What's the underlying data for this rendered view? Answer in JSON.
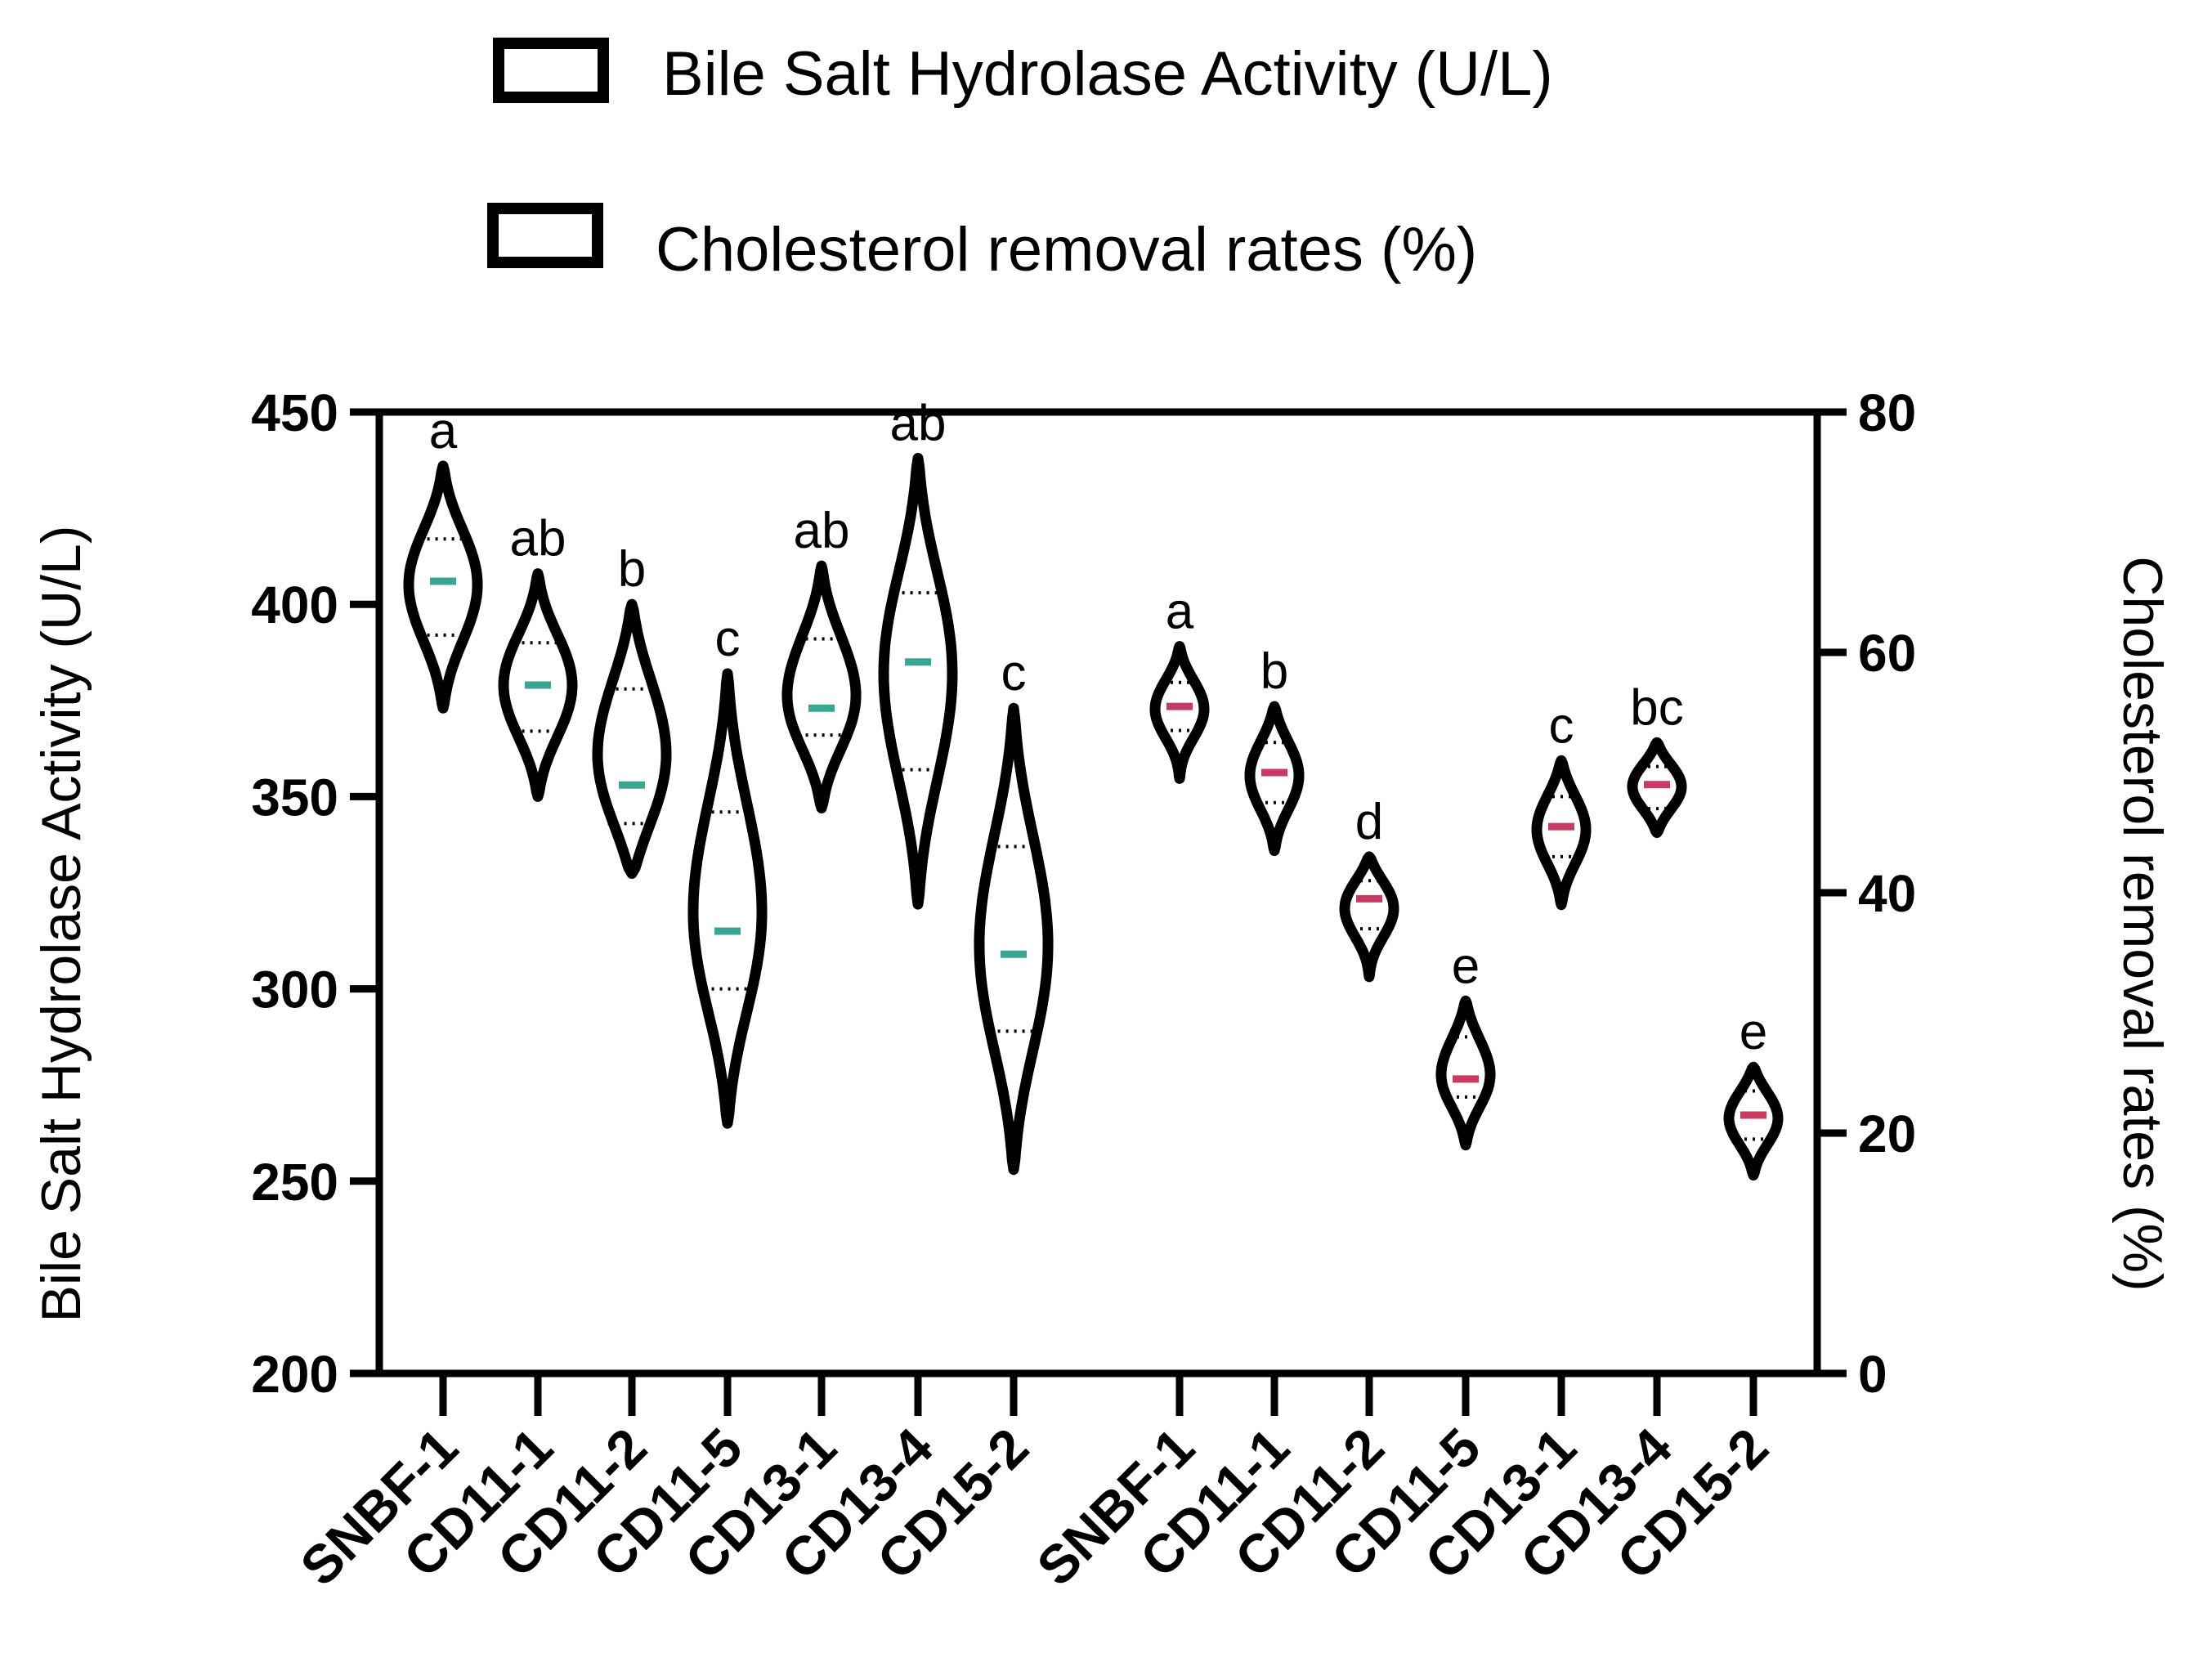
{
  "legend": {
    "items": [
      {
        "label": "Bile Salt Hydrolase Activity (U/L)"
      },
      {
        "label": "Cholesterol removal rates (%)"
      }
    ]
  },
  "chart_data": {
    "type": "violin",
    "left_axis": {
      "title": "Bile Salt Hydrolase Activity (U/L)",
      "range": [
        200,
        450
      ],
      "ticks": [
        "200",
        "250",
        "300",
        "350",
        "400",
        "450"
      ]
    },
    "right_axis": {
      "title": "Cholesterol removal rates (%)",
      "range": [
        0,
        80
      ],
      "ticks": [
        "0",
        "20",
        "40",
        "60",
        "80"
      ]
    },
    "series": [
      {
        "name": "Bile Salt Hydrolase Activity (U/L)",
        "axis": "left",
        "median_color": "#3aa593",
        "groups": [
          {
            "category": "SNBF-1",
            "letter": "a",
            "min": 373,
            "max": 436,
            "q1": 392,
            "median": 406,
            "q3": 417
          },
          {
            "category": "CD11-1",
            "letter": "ab",
            "min": 350,
            "max": 408,
            "q1": 367,
            "median": 379,
            "q3": 390
          },
          {
            "category": "CD11-2",
            "letter": "b",
            "min": 330,
            "max": 400,
            "q1": 343,
            "median": 353,
            "q3": 378
          },
          {
            "category": "CD11-5",
            "letter": "c",
            "min": 265,
            "max": 382,
            "q1": 300,
            "median": 315,
            "q3": 346
          },
          {
            "category": "CD13-1",
            "letter": "ab",
            "min": 347,
            "max": 410,
            "q1": 366,
            "median": 373,
            "q3": 391
          },
          {
            "category": "CD13-4",
            "letter": "ab",
            "min": 322,
            "max": 438,
            "q1": 357,
            "median": 385,
            "q3": 403
          },
          {
            "category": "CD15-2",
            "letter": "c",
            "min": 253,
            "max": 373,
            "q1": 289,
            "median": 309,
            "q3": 337
          }
        ]
      },
      {
        "name": "Cholesterol removal rates (%)",
        "axis": "right",
        "median_color": "#c93a62",
        "groups": [
          {
            "category": "SNBF-1",
            "letter": "a",
            "min": 49.5,
            "max": 60.5,
            "q1": 53.5,
            "median": 55.5,
            "q3": 57.5
          },
          {
            "category": "CD11-1",
            "letter": "b",
            "min": 43.5,
            "max": 55.5,
            "q1": 47.5,
            "median": 50.0,
            "q3": 52.5
          },
          {
            "category": "CD11-2",
            "letter": "d",
            "min": 33.0,
            "max": 43.0,
            "q1": 37.0,
            "median": 39.5,
            "q3": 41.0
          },
          {
            "category": "CD11-5",
            "letter": "e",
            "min": 19.0,
            "max": 31.0,
            "q1": 23.0,
            "median": 24.5,
            "q3": 28.0
          },
          {
            "category": "CD13-1",
            "letter": "c",
            "min": 39.0,
            "max": 51.0,
            "q1": 43.0,
            "median": 45.5,
            "q3": 48.0
          },
          {
            "category": "CD13-4",
            "letter": "bc",
            "min": 45.0,
            "max": 52.5,
            "q1": 47.0,
            "median": 49.0,
            "q3": 50.5
          },
          {
            "category": "CD15-2",
            "letter": "e",
            "min": 16.5,
            "max": 25.5,
            "q1": 19.5,
            "median": 21.5,
            "q3": 23.5
          }
        ]
      }
    ]
  }
}
